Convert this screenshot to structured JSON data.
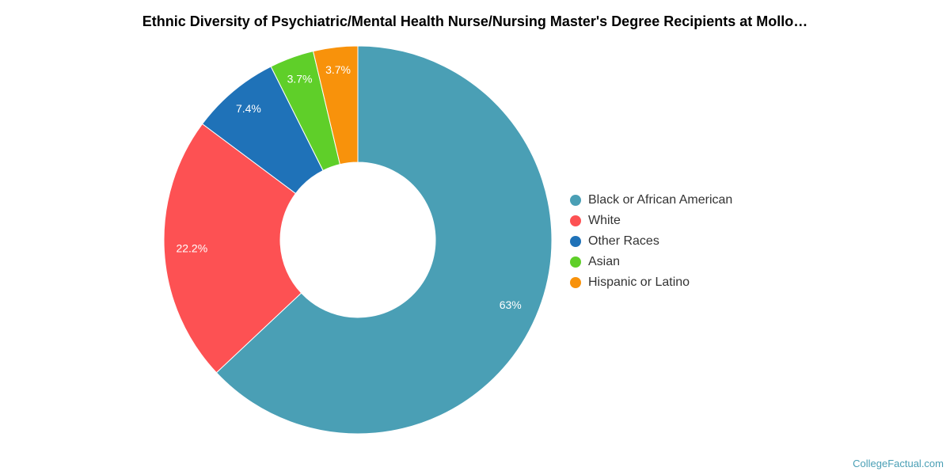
{
  "chart_data": {
    "type": "pie",
    "title": "Ethnic Diversity of Psychiatric/Mental Health Nurse/Nursing Master's Degree Recipients at Mollo…",
    "categories": [
      "Black or African American",
      "White",
      "Other Races",
      "Asian",
      "Hispanic or Latino"
    ],
    "values": [
      63,
      22.2,
      7.4,
      3.7,
      3.7
    ],
    "data_labels": [
      "63%",
      "22.2%",
      "7.4%",
      "3.7%",
      "3.7%"
    ],
    "colors": [
      "#4a9fb5",
      "#fd5153",
      "#1f72b8",
      "#5fcf29",
      "#f8920b"
    ],
    "donut": true,
    "legend_position": "right"
  },
  "credit": "CollegeFactual.com"
}
